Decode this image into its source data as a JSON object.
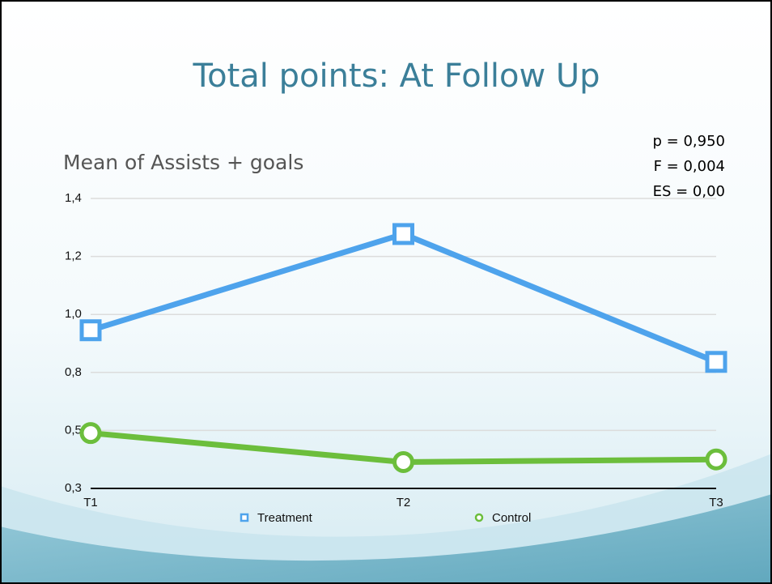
{
  "chart_data": {
    "type": "line",
    "title": "Total points: At Follow Up",
    "y_label": "Mean of Assists + goals",
    "annotations": [
      "p = 0,950",
      "F = 0,004",
      "ES = 0,00"
    ],
    "categories": [
      "T1",
      "T2",
      "T3"
    ],
    "series": [
      {
        "name": "Treatment",
        "color": "#4ea3ec",
        "marker": "square",
        "values": [
          0.92,
          1.285,
          0.8
        ]
      },
      {
        "name": "Control",
        "color": "#6cbe3c",
        "marker": "circle",
        "values": [
          0.53,
          0.42,
          0.43
        ]
      }
    ],
    "ylim": [
      0.32,
      1.42
    ],
    "yticks": [
      {
        "value": 0.32,
        "label": "0,3"
      },
      {
        "value": 0.54,
        "label": "0,5"
      },
      {
        "value": 0.76,
        "label": "0,8"
      },
      {
        "value": 0.98,
        "label": "1,0"
      },
      {
        "value": 1.2,
        "label": "1,2"
      },
      {
        "value": 1.42,
        "label": "1,4"
      }
    ],
    "grid": true,
    "legend": "bottom"
  }
}
